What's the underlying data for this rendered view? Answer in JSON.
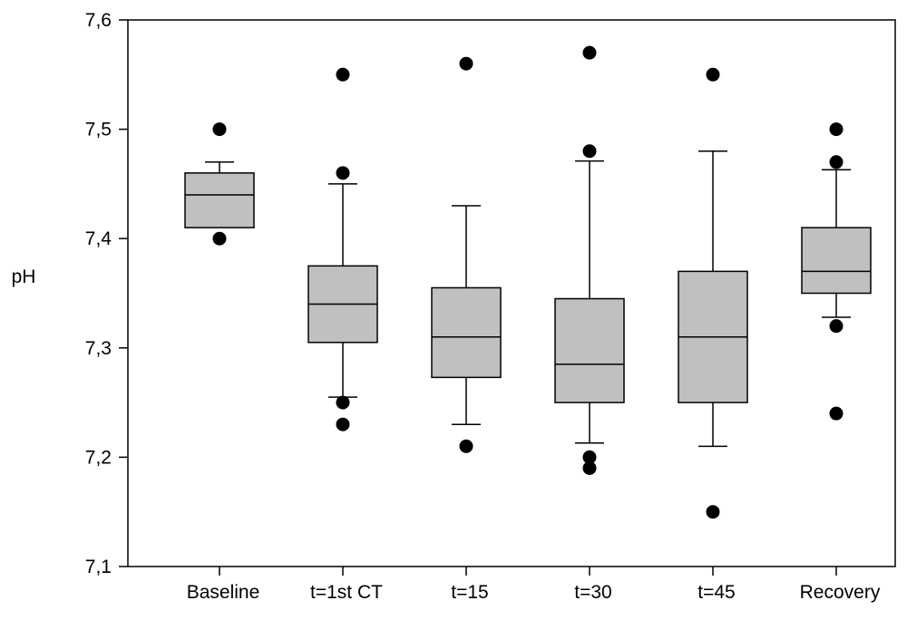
{
  "chart_data": {
    "type": "box",
    "title": "",
    "xlabel": "",
    "ylabel": "pH",
    "ylim": [
      7.1,
      7.6
    ],
    "yticks": [
      {
        "value": 7.1,
        "label": "7,1"
      },
      {
        "value": 7.2,
        "label": "7,2"
      },
      {
        "value": 7.3,
        "label": "7,3"
      },
      {
        "value": 7.4,
        "label": "7,4"
      },
      {
        "value": 7.5,
        "label": "7,5"
      },
      {
        "value": 7.6,
        "label": "7,6"
      }
    ],
    "grid": false,
    "legend": "none",
    "colors": {
      "box_fill": "#c0c0c0",
      "stroke": "#000000",
      "outlier": "#000000"
    },
    "categories": [
      "Baseline",
      "t=1st CT",
      "t=15",
      "t=30",
      "t=45",
      "Recovery"
    ],
    "boxes": [
      {
        "whisker_low": null,
        "q1": 7.41,
        "median": 7.44,
        "q3": 7.46,
        "whisker_high": 7.47,
        "outliers": [
          7.5,
          7.4
        ]
      },
      {
        "whisker_low": 7.255,
        "q1": 7.305,
        "median": 7.34,
        "q3": 7.375,
        "whisker_high": 7.45,
        "outliers": [
          7.55,
          7.46,
          7.25,
          7.23
        ]
      },
      {
        "whisker_low": 7.23,
        "q1": 7.273,
        "median": 7.31,
        "q3": 7.355,
        "whisker_high": 7.43,
        "outliers": [
          7.56,
          7.21
        ]
      },
      {
        "whisker_low": 7.213,
        "q1": 7.25,
        "median": 7.285,
        "q3": 7.345,
        "whisker_high": 7.471,
        "outliers": [
          7.57,
          7.48,
          7.2,
          7.19
        ]
      },
      {
        "whisker_low": 7.21,
        "q1": 7.25,
        "median": 7.31,
        "q3": 7.37,
        "whisker_high": 7.48,
        "outliers": [
          7.55,
          7.15
        ]
      },
      {
        "whisker_low": 7.328,
        "q1": 7.35,
        "median": 7.37,
        "q3": 7.41,
        "whisker_high": 7.463,
        "outliers": [
          7.5,
          7.47,
          7.32,
          7.24
        ]
      }
    ]
  }
}
